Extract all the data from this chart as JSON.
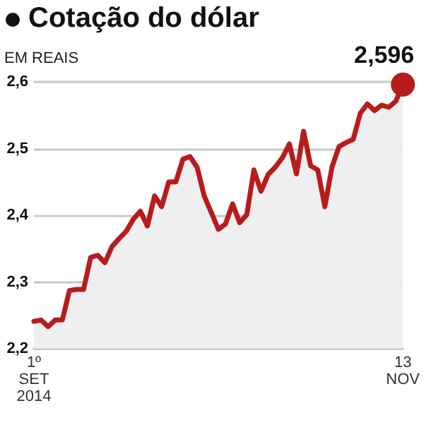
{
  "chart_data": {
    "type": "area",
    "title": "Cotação do dólar",
    "ylabel": "EM REAIS",
    "categories": [
      "1º\nSET\n2014",
      null,
      null,
      null,
      null,
      null,
      null,
      null,
      null,
      null,
      null,
      null,
      null,
      null,
      null,
      null,
      null,
      null,
      null,
      null,
      null,
      null,
      null,
      null,
      null,
      null,
      null,
      null,
      null,
      null,
      null,
      null,
      null,
      null,
      null,
      null,
      null,
      null,
      null,
      null,
      null,
      null,
      null,
      null,
      null,
      null,
      null,
      null,
      null,
      null,
      null,
      null,
      "13\nNOV"
    ],
    "series": [
      {
        "color": "#b71c1c",
        "values": [
          2.241,
          2.243,
          2.233,
          2.243,
          2.243,
          2.287,
          2.289,
          2.289,
          2.337,
          2.34,
          2.329,
          2.353,
          2.365,
          2.376,
          2.394,
          2.406,
          2.384,
          2.429,
          2.413,
          2.45,
          2.45,
          2.484,
          2.488,
          2.472,
          2.429,
          2.404,
          2.379,
          2.387,
          2.417,
          2.389,
          2.401,
          2.468,
          2.436,
          2.461,
          2.472,
          2.486,
          2.507,
          2.462,
          2.526,
          2.474,
          2.468,
          2.413,
          2.472,
          2.503,
          2.509,
          2.514,
          2.553,
          2.567,
          2.557,
          2.565,
          2.562,
          2.571,
          2.596
        ]
      }
    ],
    "annotations": [
      {
        "text": "2,596",
        "x": "13\nNOV",
        "y": 2.596
      }
    ],
    "ylim": [
      2.2,
      2.6
    ],
    "yticks": [
      {
        "value": 2.2,
        "label": "2,2"
      },
      {
        "value": 2.3,
        "label": "2,3"
      },
      {
        "value": 2.4,
        "label": "2,4"
      },
      {
        "value": 2.5,
        "label": "2,5"
      },
      {
        "value": 2.6,
        "label": "2,6"
      }
    ],
    "grid": "y",
    "marker": "none",
    "line_style": "solid"
  }
}
